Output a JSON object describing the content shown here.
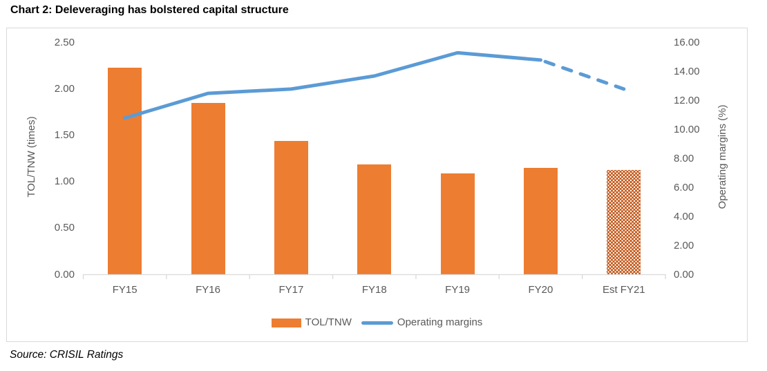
{
  "page": {
    "title": "Chart 2: Deleveraging has bolstered capital structure",
    "source": "Source: CRISIL Ratings"
  },
  "chart_data": {
    "type": "combo-bar-line",
    "categories": [
      "FY15",
      "FY16",
      "FY17",
      "FY18",
      "FY19",
      "FY20",
      "Est FY21"
    ],
    "series": [
      {
        "name": "TOL/TNW",
        "type": "bar",
        "axis": "left",
        "values": [
          2.23,
          1.85,
          1.44,
          1.19,
          1.09,
          1.15,
          1.13
        ],
        "color": "#ED7D31",
        "last_bar_pattern": "white-dot pattern fill (estimated year)",
        "pattern_fill_color": "#C4591B"
      },
      {
        "name": "Operating margins",
        "type": "line",
        "axis": "right",
        "values": [
          10.8,
          12.5,
          12.8,
          13.7,
          15.3,
          14.8,
          12.8
        ],
        "color": "#5B9BD5",
        "dashed_from_category": "FY20",
        "note": "segment from FY20 to Est FY21 drawn dashed (estimate)"
      }
    ],
    "left_axis": {
      "title": "TOL/TNW (times)",
      "min": 0.0,
      "max": 2.5,
      "tick_step": 0.5,
      "tick_labels": [
        "0.00",
        "0.50",
        "1.00",
        "1.50",
        "2.00",
        "2.50"
      ]
    },
    "right_axis": {
      "title": "Operating margins (%)",
      "min": 0.0,
      "max": 16.0,
      "tick_step": 2.0,
      "tick_labels": [
        "0.00",
        "2.00",
        "4.00",
        "6.00",
        "8.00",
        "10.00",
        "12.00",
        "14.00",
        "16.00"
      ]
    },
    "legend": {
      "position": "bottom-center",
      "items": [
        {
          "label": "TOL/TNW",
          "marker": "bar",
          "color": "#ED7D31"
        },
        {
          "label": "Operating margins",
          "marker": "line",
          "color": "#5B9BD5"
        }
      ]
    },
    "grid": "off"
  },
  "colors": {
    "bar": "#ED7D31",
    "bar_pattern_base": "#C4591B",
    "line": "#5B9BD5",
    "axis_text": "#595959",
    "axis_line": "#D9D9D9",
    "chart_border": "#D9D9D9",
    "title_text": "#000000"
  }
}
